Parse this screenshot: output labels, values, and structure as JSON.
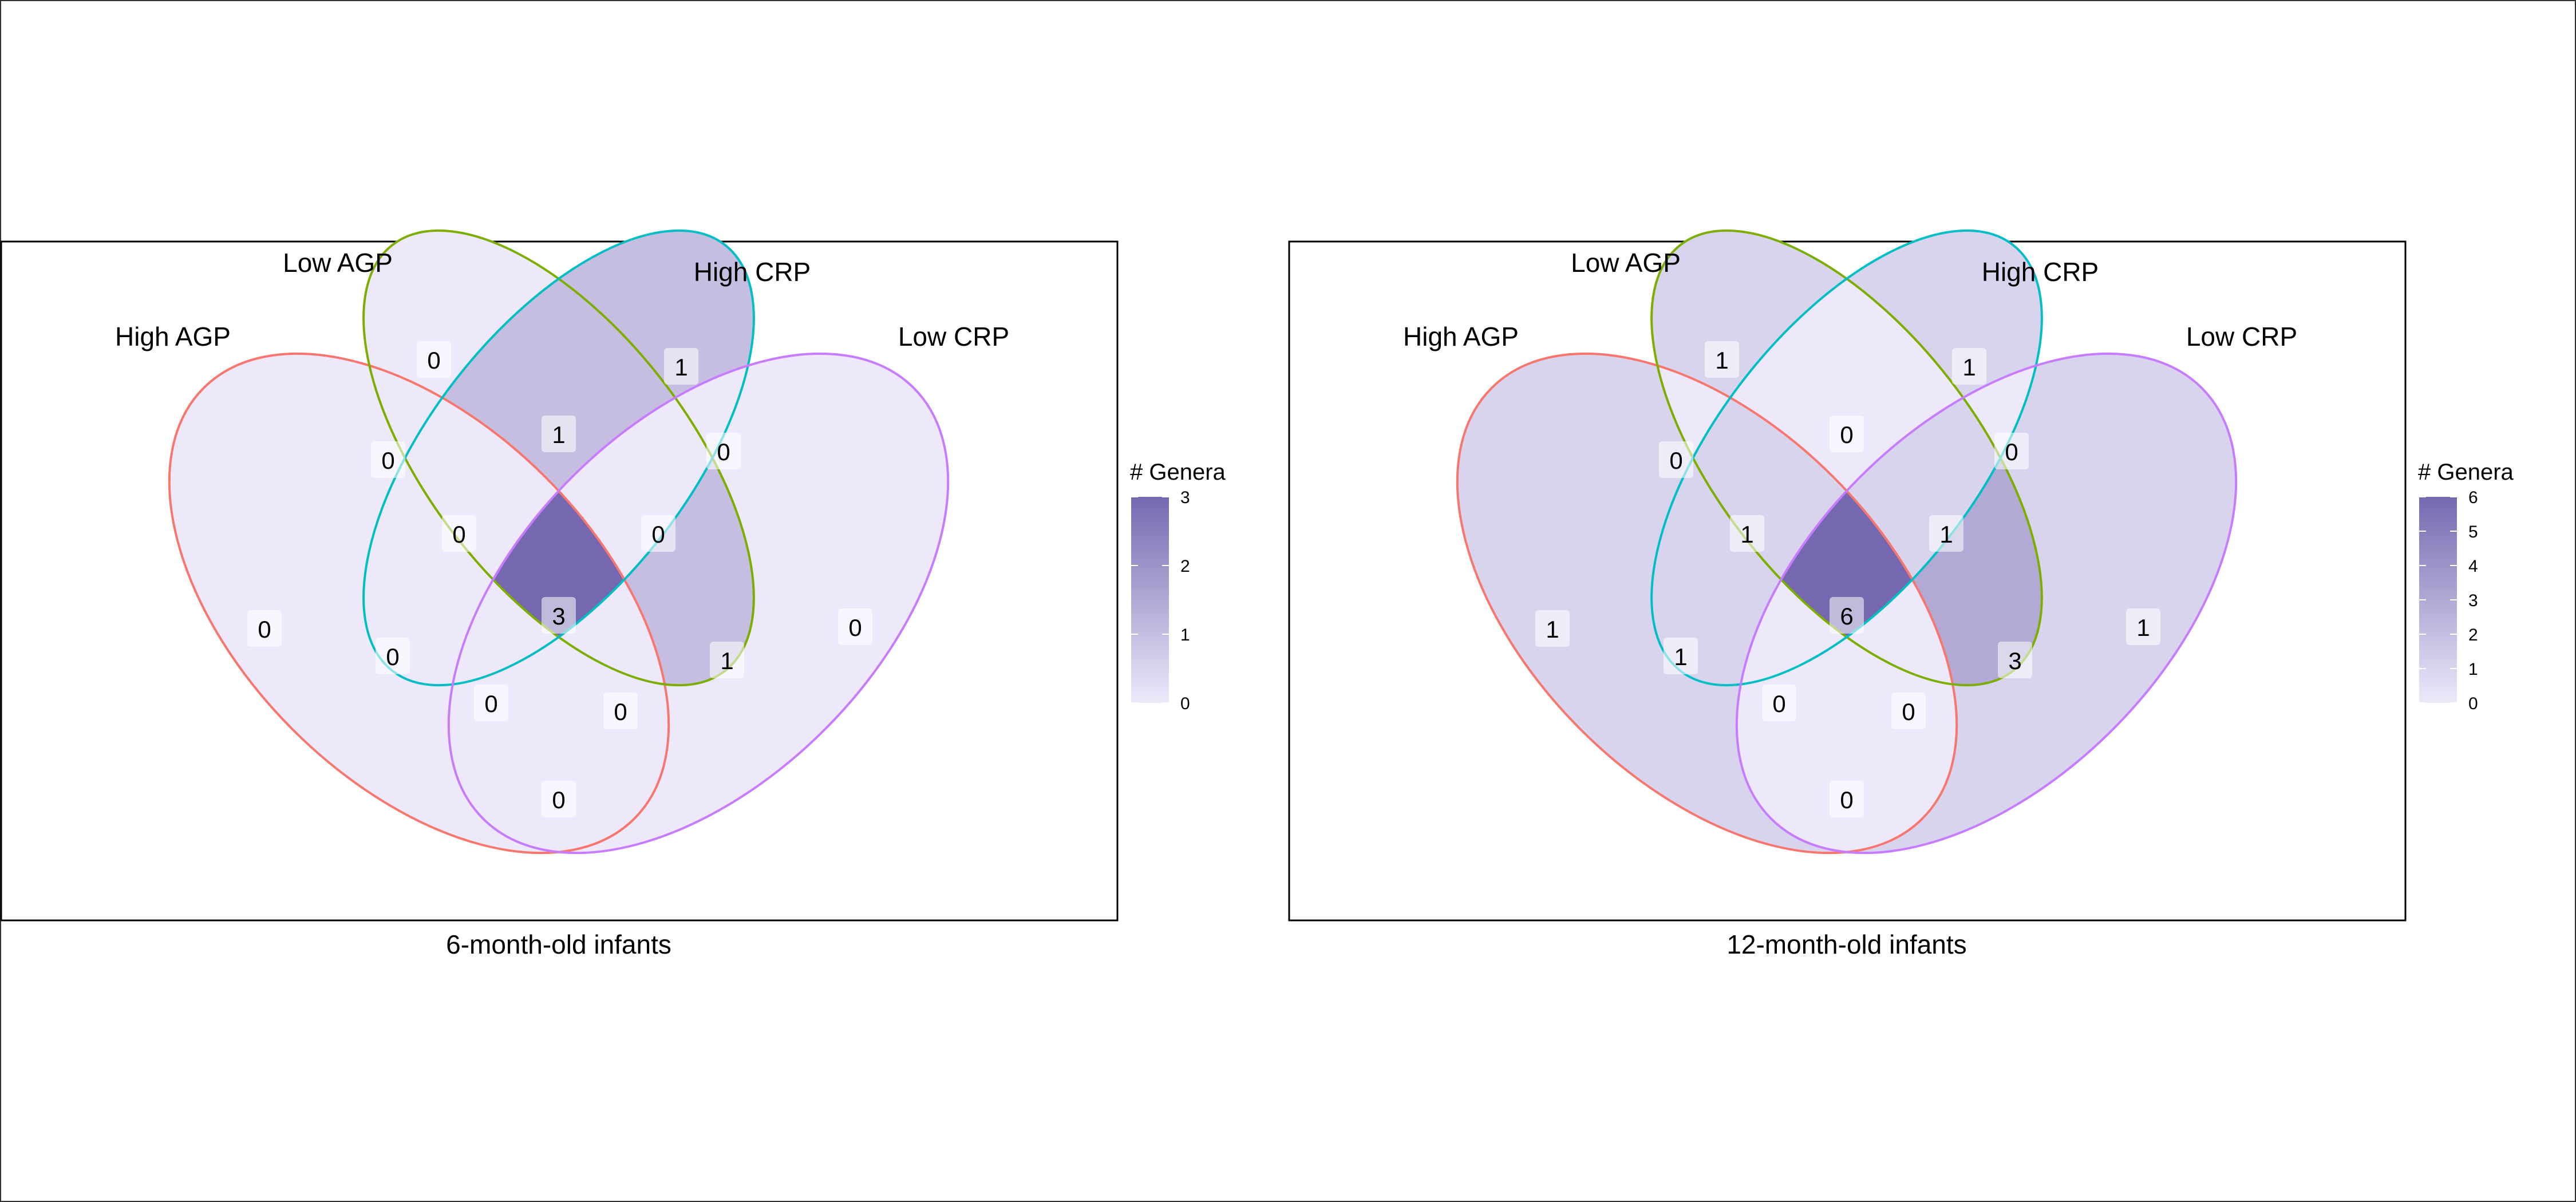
{
  "figure": {
    "panels": [
      {
        "caption": "6-month-old infants",
        "legend": {
          "title": "# Genera",
          "ticks": [
            "0",
            "1",
            "2",
            "3"
          ],
          "max": 3
        },
        "sets": [
          {
            "name": "High AGP",
            "color": "#F8766D"
          },
          {
            "name": "Low AGP",
            "color": "#7CAE00"
          },
          {
            "name": "High CRP",
            "color": "#00BFC4"
          },
          {
            "name": "Low CRP",
            "color": "#C77CFF"
          }
        ],
        "regions": {
          "A": 0,
          "B": 0,
          "C": 1,
          "D": 0,
          "AB": 0,
          "BC": 1,
          "CD": 0,
          "AD": 0,
          "AC": 0,
          "BD": 1,
          "ABC": 0,
          "BCD": 0,
          "ACD": 0,
          "ABD": 0,
          "ABCD": 3
        }
      },
      {
        "caption": "12-month-old infants",
        "legend": {
          "title": "# Genera",
          "ticks": [
            "0",
            "1",
            "2",
            "3",
            "4",
            "5",
            "6"
          ],
          "max": 6
        },
        "sets": [
          {
            "name": "High AGP",
            "color": "#F8766D"
          },
          {
            "name": "Low AGP",
            "color": "#7CAE00"
          },
          {
            "name": "High CRP",
            "color": "#00BFC4"
          },
          {
            "name": "Low CRP",
            "color": "#C77CFF"
          }
        ],
        "regions": {
          "A": 1,
          "B": 1,
          "C": 1,
          "D": 1,
          "AB": 0,
          "BC": 0,
          "CD": 0,
          "AD": 0,
          "AC": 1,
          "BD": 3,
          "ABC": 1,
          "BCD": 1,
          "ACD": 0,
          "ABD": 0,
          "ABCD": 6
        }
      }
    ]
  }
}
